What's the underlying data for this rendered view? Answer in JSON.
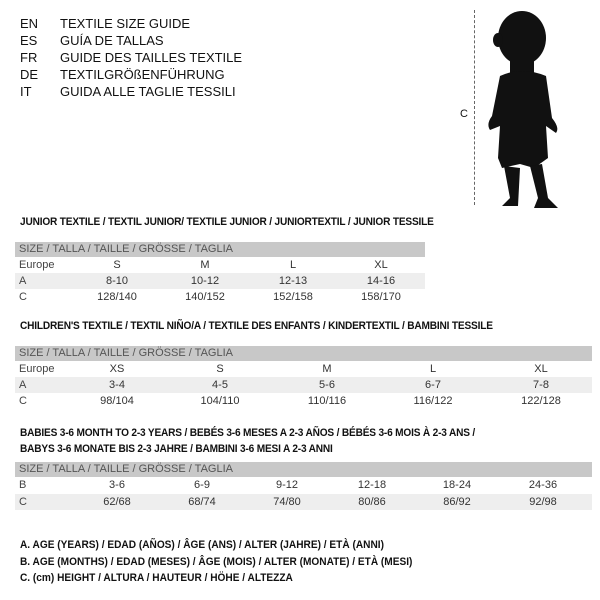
{
  "languages": [
    {
      "code": "EN",
      "text": "TEXTILE SIZE GUIDE"
    },
    {
      "code": "ES",
      "text": "GUÍA DE TALLAS"
    },
    {
      "code": "FR",
      "text": "GUIDE DES TAILLES TEXTILE"
    },
    {
      "code": "DE",
      "text": "TEXTILGRÖßENFÜHRUNG"
    },
    {
      "code": "IT",
      "text": "GUIDA ALLE TAGLIE TESSILI"
    }
  ],
  "figure": {
    "label": "C"
  },
  "size_header": "SIZE / TALLA / TAILLE / GRÖSSE / TAGLIA",
  "junior": {
    "title": "JUNIOR TEXTILE / TEXTIL JUNIOR/ TEXTILE JUNIOR / JUNIORTEXTIL / JUNIOR TESSILE",
    "rows": [
      {
        "label": "Europe",
        "values": [
          "S",
          "M",
          "L",
          "XL"
        ]
      },
      {
        "label": "A",
        "values": [
          "8-10",
          "10-12",
          "12-13",
          "14-16"
        ]
      },
      {
        "label": "C",
        "values": [
          "128/140",
          "140/152",
          "152/158",
          "158/170"
        ]
      }
    ]
  },
  "children": {
    "title": "CHILDREN'S TEXTILE / TEXTIL NIÑO/A / TEXTILE DES ENFANTS / KINDERTEXTIL / BAMBINI TESSILE",
    "rows": [
      {
        "label": "Europe",
        "values": [
          "XS",
          "S",
          "M",
          "L",
          "XL"
        ]
      },
      {
        "label": "A",
        "values": [
          "3-4",
          "4-5",
          "5-6",
          "6-7",
          "7-8"
        ]
      },
      {
        "label": "C",
        "values": [
          "98/104",
          "104/110",
          "110/116",
          "116/122",
          "122/128"
        ]
      }
    ]
  },
  "babies": {
    "title1": "BABIES 3-6 MONTH TO 2-3 YEARS / BEBÉS 3-6 MESES A 2-3 AÑOS / BÉBÉS 3-6 MOIS À 2-3 ANS /",
    "title2": "BABYS 3-6 MONATE BIS 2-3 JAHRE / BAMBINI 3-6 MESI A 2-3 ANNI",
    "rows": [
      {
        "label": "B",
        "values": [
          "3-6",
          "6-9",
          "9-12",
          "12-18",
          "18-24",
          "24-36"
        ]
      },
      {
        "label": "C",
        "values": [
          "62/68",
          "68/74",
          "74/80",
          "80/86",
          "86/92",
          "92/98"
        ]
      }
    ]
  },
  "legend": [
    "A. AGE (YEARS) / EDAD (AÑOS) / ÂGE (ANS) / ALTER (JAHRE) / ETÀ (ANNI)",
    "B. AGE (MONTHS) / EDAD (MESES) / ÂGE (MOIS) / ALTER (MONATE) / ETÀ (MESI)",
    "C. (cm) HEIGHT / ALTURA / HAUTEUR / HÖHE / ALTEZZA"
  ]
}
